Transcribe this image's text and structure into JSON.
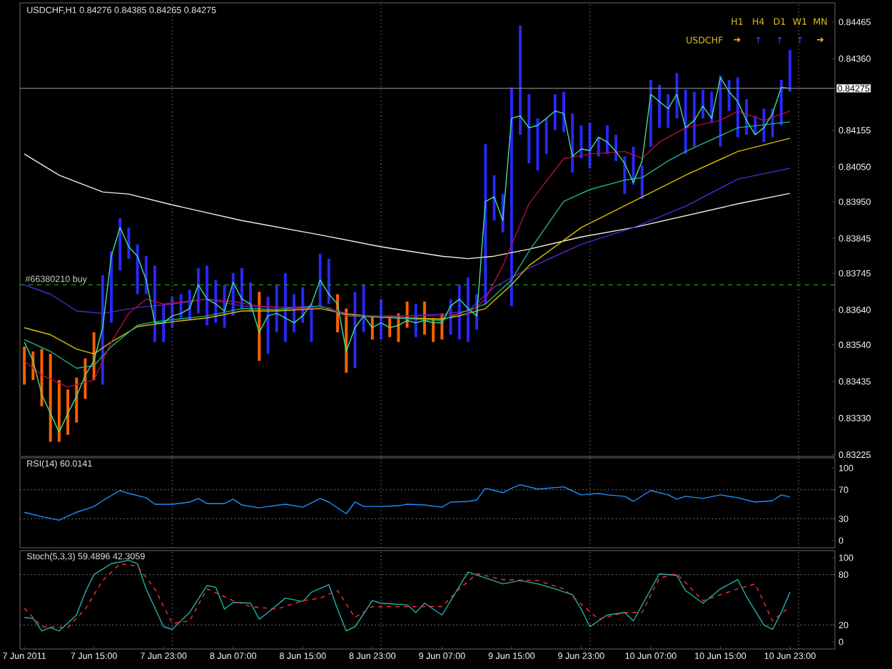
{
  "chart_data": [
    {
      "type": "bar",
      "title": "USDCHF,H1 0.84276 0.84385 0.84265 0.84275",
      "x": [
        "2011-06-07T07:00",
        "2011-06-07T08:00",
        "2011-06-07T09:00",
        "2011-06-07T10:00",
        "2011-06-07T11:00",
        "2011-06-07T12:00",
        "2011-06-07T13:00",
        "2011-06-07T14:00",
        "2011-06-07T15:00",
        "2011-06-07T16:00",
        "2011-06-07T17:00",
        "2011-06-07T18:00",
        "2011-06-07T19:00",
        "2011-06-07T20:00",
        "2011-06-07T21:00",
        "2011-06-07T22:00",
        "2011-06-07T23:00",
        "2011-06-08T00:00",
        "2011-06-08T01:00",
        "2011-06-08T02:00",
        "2011-06-08T03:00",
        "2011-06-08T04:00",
        "2011-06-08T05:00",
        "2011-06-08T06:00",
        "2011-06-08T07:00",
        "2011-06-08T08:00",
        "2011-06-08T09:00",
        "2011-06-08T10:00",
        "2011-06-08T11:00",
        "2011-06-08T12:00",
        "2011-06-08T13:00",
        "2011-06-08T14:00",
        "2011-06-08T15:00",
        "2011-06-08T16:00",
        "2011-06-08T17:00",
        "2011-06-08T18:00",
        "2011-06-08T19:00",
        "2011-06-08T20:00",
        "2011-06-08T21:00",
        "2011-06-08T22:00",
        "2011-06-08T23:00",
        "2011-06-09T00:00",
        "2011-06-09T01:00",
        "2011-06-09T02:00",
        "2011-06-09T03:00",
        "2011-06-09T04:00",
        "2011-06-09T05:00",
        "2011-06-09T06:00",
        "2011-06-09T07:00",
        "2011-06-09T08:00",
        "2011-06-09T09:00",
        "2011-06-09T10:00",
        "2011-06-09T11:00",
        "2011-06-09T12:00",
        "2011-06-09T13:00",
        "2011-06-09T14:00",
        "2011-06-09T15:00",
        "2011-06-09T16:00",
        "2011-06-09T17:00",
        "2011-06-09T18:00",
        "2011-06-09T19:00",
        "2011-06-09T20:00",
        "2011-06-09T21:00",
        "2011-06-09T22:00",
        "2011-06-09T23:00",
        "2011-06-10T00:00",
        "2011-06-10T01:00",
        "2011-06-10T02:00",
        "2011-06-10T03:00",
        "2011-06-10T04:00",
        "2011-06-10T05:00",
        "2011-06-10T06:00",
        "2011-06-10T07:00",
        "2011-06-10T08:00",
        "2011-06-10T09:00",
        "2011-06-10T10:00",
        "2011-06-10T11:00",
        "2011-06-10T12:00",
        "2011-06-10T13:00",
        "2011-06-10T14:00",
        "2011-06-10T15:00",
        "2011-06-10T16:00",
        "2011-06-10T17:00",
        "2011-06-10T18:00",
        "2011-06-10T19:00",
        "2011-06-10T20:00",
        "2011-06-10T21:00",
        "2011-06-10T22:00",
        "2011-06-10T23:00"
      ],
      "xlim": [
        "2011-06-07T06:30",
        "2011-06-11T04:10"
      ],
      "ylim": [
        0.8322,
        0.8452
      ],
      "yticks": [
        0.84465,
        {
          "value": 0.8436,
          "label": "0.84360"
        },
        0.84155,
        {
          "value": 0.8405,
          "label": "0.84050"
        },
        {
          "value": 0.8395,
          "label": "0.83950"
        },
        0.83845,
        0.83745,
        {
          "value": 0.8364,
          "label": "0.83640"
        },
        {
          "value": 0.8354,
          "label": "0.83540"
        },
        0.83435,
        {
          "value": 0.8333,
          "label": "0.83330"
        },
        0.83225
      ],
      "tick_labels": "y",
      "ref_lines": [
        {
          "axis": "y",
          "value": 0.84275,
          "label": "0.84275",
          "color": "#808080",
          "line_style": "solid"
        },
        {
          "axis": "y",
          "value": 0.83712,
          "label": "#66380210 buy",
          "color": "#1e9e1e",
          "line_style": "dashed"
        },
        {
          "axis": "x",
          "value": "2011-06-08T00:00",
          "color": "#808080",
          "line_style": "dotted"
        },
        {
          "axis": "x",
          "value": "2011-06-09T00:00",
          "color": "#808080",
          "line_style": "dotted"
        },
        {
          "axis": "x",
          "value": "2011-06-10T00:00",
          "color": "#808080",
          "line_style": "dotted"
        },
        {
          "axis": "x",
          "value": "2011-06-11T00:00",
          "color": "#808080",
          "line_style": "dotted"
        }
      ],
      "annotations": [
        "USDCHF",
        "H1",
        "H4",
        "D1",
        "W1",
        "MN",
        "➔",
        "↑",
        "↑",
        "↑",
        "➔"
      ],
      "series": [
        {
          "type": "bar",
          "base": [
            0.83426,
            0.83439,
            0.83364,
            0.83262,
            0.83262,
            0.83282,
            0.83317,
            0.83385,
            0.83439,
            0.83426,
            0.83603,
            0.83753,
            0.83787,
            0.83685,
            0.83685,
            0.83548,
            0.83548,
            0.83589,
            0.83617,
            0.8361,
            0.8363,
            0.83596,
            0.83603,
            0.83589,
            0.83623,
            0.83644,
            0.83637,
            0.83494,
            0.83514,
            0.83576,
            0.83548,
            0.83576,
            0.83603,
            0.83548,
            0.83651,
            0.83657,
            0.83576,
            0.8346,
            0.83473,
            0.83576,
            0.83555,
            0.83555,
            0.83562,
            0.83548,
            0.83589,
            0.83562,
            0.83569,
            0.83548,
            0.83555,
            0.83569,
            0.83555,
            0.83548,
            0.83583,
            0.83657,
            0.83896,
            0.83862,
            0.83651,
            0.84142,
            0.8406,
            0.8404,
            0.84087,
            0.84155,
            0.84149,
            0.84033,
            0.84074,
            0.84046,
            0.8408,
            0.84087,
            0.84067,
            0.83972,
            0.83999,
            0.83958,
            0.84108,
            0.84162,
            0.84162,
            0.84189,
            0.84087,
            0.84108,
            0.84189,
            0.84176,
            0.84108,
            0.8421,
            0.84135,
            0.84142,
            0.84142,
            0.84121,
            0.84135,
            0.84169,
            0.84265
          ],
          "values": [
            0.00109,
            0.00082,
            0.00164,
            0.00252,
            0.00177,
            0.0013,
            0.00129,
            0.00116,
            0.00137,
            0.00313,
            0.00205,
            0.0015,
            0.00089,
            0.00143,
            0.00109,
            0.00219,
            0.00109,
            0.00089,
            0.00068,
            0.00088,
            0.0013,
            0.00171,
            0.00123,
            0.00123,
            0.00123,
            0.00116,
            0.00082,
            0.00198,
            0.00164,
            0.00136,
            0.00198,
            0.00109,
            0.00102,
            0.00109,
            0.0015,
            0.0013,
            0.00109,
            0.00184,
            0.00219,
            0.00136,
            0.00068,
            0.00116,
            0.00061,
            0.00082,
            0.00075,
            0.00095,
            0.00095,
            0.00069,
            0.00075,
            0.00102,
            0.00157,
            0.00185,
            0.00102,
            0.00458,
            0.0013,
            0.0011,
            0.00627,
            0.00313,
            0.00198,
            0.00149,
            0.00102,
            0.00103,
            0.00116,
            0.0017,
            0.00095,
            0.0013,
            0.00055,
            0.00082,
            0.00075,
            0.00108,
            0.00109,
            0.00096,
            0.00191,
            0.00123,
            0.00096,
            0.0013,
            0.00184,
            0.00157,
            0.00082,
            0.00089,
            0.00204,
            0.00089,
            0.00171,
            0.00102,
            0.00054,
            0.00096,
            0.00082,
            0.0013,
            0.0012
          ],
          "colors": [
            "#ff6000",
            "#ff6000",
            "#ff6000",
            "#ff6000",
            "#ff6000",
            "#ff6000",
            "#ff6000",
            "#ff6000",
            "#ff6000",
            "#2828ff",
            "#2828ff",
            "#2828ff",
            "#2828ff",
            "#2828ff",
            "#2828ff",
            "#2828ff",
            "#2828ff",
            "#2828ff",
            "#2828ff",
            "#2828ff",
            "#2828ff",
            "#2828ff",
            "#2828ff",
            "#2828ff",
            "#2828ff",
            "#2828ff",
            "#2828ff",
            "#ff6000",
            "#2828ff",
            "#2828ff",
            "#2828ff",
            "#2828ff",
            "#2828ff",
            "#2828ff",
            "#2828ff",
            "#2828ff",
            "#ff6000",
            "#ff6000",
            "#2828ff",
            "#2828ff",
            "#ff6000",
            "#2828ff",
            "#ff6000",
            "#ff6000",
            "#ff6000",
            "#2828ff",
            "#ff6000",
            "#ff6000",
            "#ff6000",
            "#2828ff",
            "#2828ff",
            "#2828ff",
            "#2828ff",
            "#2828ff",
            "#2828ff",
            "#2828ff",
            "#2828ff",
            "#2828ff",
            "#2828ff",
            "#2828ff",
            "#2828ff",
            "#2828ff",
            "#2828ff",
            "#2828ff",
            "#2828ff",
            "#2828ff",
            "#2828ff",
            "#2828ff",
            "#2828ff",
            "#2828ff",
            "#2828ff",
            "#2828ff",
            "#2828ff",
            "#2828ff",
            "#2828ff",
            "#2828ff",
            "#2828ff",
            "#2828ff",
            "#2828ff",
            "#2828ff",
            "#2828ff",
            "#2828ff",
            "#2828ff",
            "#2828ff",
            "#2828ff",
            "#2828ff",
            "#2828ff",
            "#2828ff",
            "#2828ff"
          ]
        },
        {
          "type": "line",
          "color": "#f0f0e0",
          "x": [
            "2011-06-07T07:00",
            "2011-06-07T11:00",
            "2011-06-07T16:00",
            "2011-06-07T19:00",
            "2011-06-08T00:00",
            "2011-06-08T08:00",
            "2011-06-08T17:00",
            "2011-06-09T00:00",
            "2011-06-09T07:00",
            "2011-06-09T10:00",
            "2011-06-09T13:00",
            "2011-06-09T17:00",
            "2011-06-09T23:00",
            "2011-06-10T05:00",
            "2011-06-10T11:00",
            "2011-06-10T17:00",
            "2011-06-10T23:00"
          ],
          "values": [
            0.84087,
            0.84026,
            0.83978,
            0.83972,
            0.83941,
            0.83896,
            0.83855,
            0.83821,
            0.83794,
            0.83787,
            0.83794,
            0.83814,
            0.83849,
            0.83876,
            0.8391,
            0.83944,
            0.83974
          ]
        },
        {
          "type": "line",
          "color": "#5a24d8",
          "x": [
            "2011-06-07T07:00",
            "2011-06-07T10:00",
            "2011-06-07T13:00",
            "2011-06-07T16:00",
            "2011-06-07T20:00",
            "2011-06-08T00:00",
            "2011-06-08T04:00",
            "2011-06-08T08:00",
            "2011-06-08T12:00",
            "2011-06-08T17:00",
            "2011-06-08T20:00",
            "2011-06-09T00:00",
            "2011-06-09T07:00",
            "2011-06-09T10:00",
            "2011-06-09T13:00",
            "2011-06-09T17:00",
            "2011-06-09T23:00",
            "2011-06-10T05:00",
            "2011-06-10T11:00",
            "2011-06-10T17:00",
            "2011-06-10T23:00"
          ],
          "values": [
            0.83712,
            0.83685,
            0.83637,
            0.8363,
            0.83647,
            0.83657,
            0.83671,
            0.83651,
            0.83647,
            0.83651,
            0.8363,
            0.83619,
            0.83628,
            0.83637,
            0.83705,
            0.8376,
            0.83828,
            0.83876,
            0.83937,
            0.84015,
            0.84046
          ]
        },
        {
          "type": "line",
          "color": "#d8c000",
          "x": [
            "2011-06-07T07:00",
            "2011-06-07T10:00",
            "2011-06-07T13:00",
            "2011-06-07T15:00",
            "2011-06-07T17:00",
            "2011-06-07T20:00",
            "2011-06-08T00:00",
            "2011-06-08T04:00",
            "2011-06-08T08:00",
            "2011-06-08T12:00",
            "2011-06-08T17:00",
            "2011-06-08T20:00",
            "2011-06-09T00:00",
            "2011-06-09T07:00",
            "2011-06-09T09:00",
            "2011-06-09T12:00",
            "2011-06-09T15:00",
            "2011-06-09T17:00",
            "2011-06-09T23:00",
            "2011-06-10T05:00",
            "2011-06-10T11:00",
            "2011-06-10T17:00",
            "2011-06-10T23:00"
          ],
          "values": [
            0.83589,
            0.83569,
            0.83528,
            0.83514,
            0.83548,
            0.83592,
            0.83606,
            0.83617,
            0.83637,
            0.83637,
            0.83644,
            0.83628,
            0.83619,
            0.83614,
            0.83623,
            0.83644,
            0.83712,
            0.83767,
            0.83876,
            0.83951,
            0.84026,
            0.84094,
            0.84132
          ]
        },
        {
          "type": "line",
          "color": "#20b080",
          "x": [
            "2011-06-07T07:00",
            "2011-06-07T10:00",
            "2011-06-07T13:00",
            "2011-06-07T15:00",
            "2011-06-07T17:00",
            "2011-06-07T20:00",
            "2011-06-07T22:00",
            "2011-06-08T04:00",
            "2011-06-08T08:00",
            "2011-06-08T12:00",
            "2011-06-08T17:00",
            "2011-06-08T20:00",
            "2011-06-09T00:00",
            "2011-06-09T07:00",
            "2011-06-09T09:00",
            "2011-06-09T12:00",
            "2011-06-09T15:00",
            "2011-06-09T17:00",
            "2011-06-09T21:00",
            "2011-06-10T00:00",
            "2011-06-10T04:00",
            "2011-06-10T06:00",
            "2011-06-10T09:00",
            "2011-06-10T11:00",
            "2011-06-10T17:00",
            "2011-06-10T23:00"
          ],
          "values": [
            0.83555,
            0.83521,
            0.83473,
            0.8348,
            0.83535,
            0.83596,
            0.83606,
            0.83623,
            0.83644,
            0.83641,
            0.83651,
            0.83623,
            0.83619,
            0.8361,
            0.8363,
            0.83657,
            0.83726,
            0.83808,
            0.83951,
            0.83985,
            0.84012,
            0.84019,
            0.84067,
            0.84094,
            0.84162,
            0.84179
          ]
        },
        {
          "type": "line",
          "color": "#b01040",
          "x": [
            "2011-06-07T07:00",
            "2011-06-07T09:00",
            "2011-06-07T12:00",
            "2011-06-07T15:00",
            "2011-06-07T17:00",
            "2011-06-07T19:00",
            "2011-06-07T21:00",
            "2011-06-07T23:00",
            "2011-06-08T04:00",
            "2011-06-08T07:00",
            "2011-06-08T10:00",
            "2011-06-08T15:00",
            "2011-06-08T18:00",
            "2011-06-08T20:00",
            "2011-06-09T00:00",
            "2011-06-09T07:00",
            "2011-06-09T10:00",
            "2011-06-09T12:00",
            "2011-06-09T14:00",
            "2011-06-09T17:00",
            "2011-06-09T21:00",
            "2011-06-10T00:00",
            "2011-06-10T04:00",
            "2011-06-10T06:00",
            "2011-06-10T08:00",
            "2011-06-10T11:00",
            "2011-06-10T15:00",
            "2011-06-10T17:00",
            "2011-06-10T20:00",
            "2011-06-10T23:00"
          ],
          "values": [
            0.83494,
            0.83453,
            0.83419,
            0.83439,
            0.83548,
            0.8363,
            0.83671,
            0.83657,
            0.83671,
            0.83664,
            0.83651,
            0.83644,
            0.83647,
            0.83623,
            0.83623,
            0.83623,
            0.8363,
            0.83671,
            0.83767,
            0.83944,
            0.84074,
            0.84087,
            0.84094,
            0.84074,
            0.84121,
            0.84162,
            0.84183,
            0.8421,
            0.84183,
            0.8421
          ]
        },
        {
          "type": "line",
          "color": "#40e090",
          "values": [
            0.83548,
            0.83494,
            0.83398,
            0.83344,
            0.83289,
            0.83344,
            0.83392,
            0.83453,
            0.83494,
            0.83589,
            0.83794,
            0.83876,
            0.83821,
            0.83794,
            0.83726,
            0.83603,
            0.83603,
            0.83623,
            0.8363,
            0.83644,
            0.83712,
            0.83671,
            0.83657,
            0.83637,
            0.83719,
            0.83671,
            0.83657,
            0.83576,
            0.83623,
            0.8363,
            0.83617,
            0.83603,
            0.83623,
            0.83657,
            0.83726,
            0.83685,
            0.83657,
            0.83521,
            0.83589,
            0.83623,
            0.83589,
            0.83603,
            0.83589,
            0.83596,
            0.8361,
            0.83603,
            0.8361,
            0.83603,
            0.83603,
            0.83651,
            0.83671,
            0.83644,
            0.83623,
            0.83951,
            0.83964,
            0.83896,
            0.84189,
            0.84196,
            0.84162,
            0.84169,
            0.84189,
            0.8421,
            0.84203,
            0.8408,
            0.84101,
            0.84097,
            0.84135,
            0.84121,
            0.84094,
            0.8406,
            0.84005,
            0.84067,
            0.84258,
            0.84237,
            0.84217,
            0.84258,
            0.84162,
            0.84183,
            0.84224,
            0.84189,
            0.84306,
            0.84265,
            0.84237,
            0.84183,
            0.84142,
            0.84162,
            0.84203,
            0.84278,
            0.84275
          ]
        }
      ]
    },
    {
      "type": "line",
      "title": "RSI(14) 60.0141",
      "xlim": [
        "2011-06-07T06:30",
        "2011-06-11T04:10"
      ],
      "ylim": [
        -10,
        114
      ],
      "yticks": [
        0,
        30,
        70,
        100
      ],
      "tick_labels": "y",
      "ref_lines": [
        {
          "axis": "y",
          "value": 70,
          "color": "#909090",
          "line_style": "dotted"
        },
        {
          "axis": "y",
          "value": 30,
          "color": "#909090",
          "line_style": "dotted"
        },
        {
          "axis": "x",
          "value": "2011-06-08T00:00",
          "color": "#808080",
          "line_style": "dotted"
        },
        {
          "axis": "x",
          "value": "2011-06-09T00:00",
          "color": "#808080",
          "line_style": "dotted"
        },
        {
          "axis": "x",
          "value": "2011-06-10T00:00",
          "color": "#808080",
          "line_style": "dotted"
        },
        {
          "axis": "x",
          "value": "2011-06-11T00:00",
          "color": "#808080",
          "line_style": "dotted"
        }
      ],
      "series": [
        {
          "color": "#1e90ff",
          "x": [
            "2011-06-07T07:00",
            "2011-06-07T09:00",
            "2011-06-07T11:00",
            "2011-06-07T13:00",
            "2011-06-07T15:00",
            "2011-06-07T16:00",
            "2011-06-07T18:00",
            "2011-06-07T19:00",
            "2011-06-07T21:00",
            "2011-06-07T22:00",
            "2011-06-08T00:00",
            "2011-06-08T02:00",
            "2011-06-08T03:00",
            "2011-06-08T04:00",
            "2011-06-08T06:00",
            "2011-06-08T07:00",
            "2011-06-08T08:00",
            "2011-06-08T10:00",
            "2011-06-08T11:00",
            "2011-06-08T13:00",
            "2011-06-08T15:00",
            "2011-06-08T17:00",
            "2011-06-08T18:00",
            "2011-06-08T20:00",
            "2011-06-08T21:00",
            "2011-06-08T22:00",
            "2011-06-09T00:00",
            "2011-06-09T02:00",
            "2011-06-09T03:00",
            "2011-06-09T05:00",
            "2011-06-09T07:00",
            "2011-06-09T08:00",
            "2011-06-09T10:00",
            "2011-06-09T11:00",
            "2011-06-09T12:00",
            "2011-06-09T14:00",
            "2011-06-09T15:00",
            "2011-06-09T16:00",
            "2011-06-09T18:00",
            "2011-06-09T21:00",
            "2011-06-09T23:00",
            "2011-06-10T01:00",
            "2011-06-10T02:00",
            "2011-06-10T04:00",
            "2011-06-10T05:00",
            "2011-06-10T07:00",
            "2011-06-10T09:00",
            "2011-06-10T10:00",
            "2011-06-10T11:00",
            "2011-06-10T13:00",
            "2011-06-10T15:00",
            "2011-06-10T17:00",
            "2011-06-10T19:00",
            "2011-06-10T21:00",
            "2011-06-10T22:00",
            "2011-06-10T23:00"
          ],
          "values": [
            39,
            33,
            28,
            39,
            47,
            55,
            69,
            65,
            59,
            50,
            50,
            53,
            58,
            51,
            51,
            57,
            49,
            45,
            47,
            50,
            46,
            58,
            53,
            37,
            53,
            47,
            47,
            48,
            50,
            49,
            46,
            53,
            54,
            56,
            72,
            66,
            72,
            77,
            71,
            74,
            63,
            65,
            63,
            61,
            54,
            69,
            63,
            57,
            61,
            58,
            63,
            59,
            53,
            55,
            63,
            60
          ]
        }
      ]
    },
    {
      "type": "line",
      "title": "Stoch(5,3,3) 59.4896 42.3059",
      "xlim": [
        "2011-06-07T06:30",
        "2011-06-11T04:10"
      ],
      "ylim": [
        -8.5,
        108.5
      ],
      "yticks": [
        0,
        20,
        80,
        100
      ],
      "xticks": [
        {
          "value": "2011-06-07T07:00",
          "label": "7 Jun 2011"
        },
        {
          "value": "2011-06-07T15:00",
          "label": "7 Jun 15:00"
        },
        {
          "value": "2011-06-07T23:00",
          "label": "7 Jun 23:00"
        },
        {
          "value": "2011-06-08T07:00",
          "label": "8 Jun 07:00"
        },
        {
          "value": "2011-06-08T15:00",
          "label": "8 Jun 15:00"
        },
        {
          "value": "2011-06-08T23:00",
          "label": "8 Jun 23:00"
        },
        {
          "value": "2011-06-09T07:00",
          "label": "9 Jun 07:00"
        },
        {
          "value": "2011-06-09T15:00",
          "label": "9 Jun 15:00"
        },
        {
          "value": "2011-06-09T23:00",
          "label": "9 Jun 23:00"
        },
        {
          "value": "2011-06-10T07:00",
          "label": "10 Jun 07:00"
        },
        {
          "value": "2011-06-10T15:00",
          "label": "10 Jun 15:00"
        },
        {
          "value": "2011-06-10T23:00",
          "label": "10 Jun 23:00"
        }
      ],
      "ref_lines": [
        {
          "axis": "y",
          "value": 80,
          "color": "#909090",
          "line_style": "dotted"
        },
        {
          "axis": "y",
          "value": 20,
          "color": "#909090",
          "line_style": "dotted"
        },
        {
          "axis": "x",
          "value": "2011-06-08T00:00",
          "color": "#808080",
          "line_style": "dotted"
        },
        {
          "axis": "x",
          "value": "2011-06-09T00:00",
          "color": "#808080",
          "line_style": "dotted"
        },
        {
          "axis": "x",
          "value": "2011-06-10T00:00",
          "color": "#808080",
          "line_style": "dotted"
        },
        {
          "axis": "x",
          "value": "2011-06-11T00:00",
          "color": "#808080",
          "line_style": "dotted"
        }
      ],
      "series": [
        {
          "color": "#20b2aa",
          "x": [
            "2011-06-07T07:00",
            "2011-06-07T08:00",
            "2011-06-07T09:00",
            "2011-06-07T10:00",
            "2011-06-07T11:00",
            "2011-06-07T13:00",
            "2011-06-07T14:00",
            "2011-06-07T15:00",
            "2011-06-07T17:00",
            "2011-06-07T19:00",
            "2011-06-07T20:00",
            "2011-06-07T21:00",
            "2011-06-07T23:00",
            "2011-06-08T00:00",
            "2011-06-08T02:00",
            "2011-06-08T04:00",
            "2011-06-08T05:00",
            "2011-06-08T06:00",
            "2011-06-08T07:00",
            "2011-06-08T09:00",
            "2011-06-08T10:00",
            "2011-06-08T11:00",
            "2011-06-08T13:00",
            "2011-06-08T15:00",
            "2011-06-08T16:00",
            "2011-06-08T18:00",
            "2011-06-08T19:00",
            "2011-06-08T20:00",
            "2011-06-08T21:00",
            "2011-06-08T23:00",
            "2011-06-09T00:00",
            "2011-06-09T03:00",
            "2011-06-09T04:00",
            "2011-06-09T05:00",
            "2011-06-09T07:00",
            "2011-06-09T10:00",
            "2011-06-09T12:00",
            "2011-06-09T14:00",
            "2011-06-09T16:00",
            "2011-06-09T18:00",
            "2011-06-09T20:00",
            "2011-06-09T22:00",
            "2011-06-09T23:00",
            "2011-06-10T00:00",
            "2011-06-10T02:00",
            "2011-06-10T04:00",
            "2011-06-10T05:00",
            "2011-06-10T08:00",
            "2011-06-10T10:00",
            "2011-06-10T11:00",
            "2011-06-10T13:00",
            "2011-06-10T15:00",
            "2011-06-10T17:00",
            "2011-06-10T18:00",
            "2011-06-10T20:00",
            "2011-06-10T21:00",
            "2011-06-10T22:00",
            "2011-06-10T23:00"
          ],
          "values": [
            29,
            28,
            13,
            17,
            13,
            32,
            59,
            80,
            93,
            97,
            93,
            63,
            18,
            15,
            35,
            67,
            65,
            39,
            47,
            46,
            27,
            35,
            52,
            48,
            59,
            68,
            39,
            13,
            18,
            49,
            46,
            44,
            35,
            46,
            32,
            83,
            76,
            69,
            73,
            69,
            63,
            56,
            39,
            18,
            32,
            35,
            25,
            81,
            79,
            61,
            46,
            63,
            74,
            54,
            20,
            15,
            35,
            59
          ]
        },
        {
          "color": "#ff3030",
          "line_style": "dashed",
          "x": [
            "2011-06-07T07:00",
            "2011-06-07T09:00",
            "2011-06-07T12:00",
            "2011-06-07T14:00",
            "2011-06-07T16:00",
            "2011-06-07T18:00",
            "2011-06-07T20:00",
            "2011-06-07T22:00",
            "2011-06-08T00:00",
            "2011-06-08T02:00",
            "2011-06-08T04:00",
            "2011-06-08T07:00",
            "2011-06-08T09:00",
            "2011-06-08T12:00",
            "2011-06-08T15:00",
            "2011-06-08T17:00",
            "2011-06-08T19:00",
            "2011-06-08T21:00",
            "2011-06-08T23:00",
            "2011-06-09T03:00",
            "2011-06-09T07:00",
            "2011-06-09T09:00",
            "2011-06-09T11:00",
            "2011-06-09T14:00",
            "2011-06-09T18:00",
            "2011-06-09T21:00",
            "2011-06-10T01:00",
            "2011-06-10T04:00",
            "2011-06-10T06:00",
            "2011-06-10T08:00",
            "2011-06-10T10:00",
            "2011-06-10T13:00",
            "2011-06-10T17:00",
            "2011-06-10T19:00",
            "2011-06-10T21:00",
            "2011-06-10T23:00"
          ],
          "values": [
            40,
            18,
            17,
            39,
            73,
            93,
            90,
            63,
            22,
            25,
            63,
            49,
            42,
            39,
            49,
            52,
            61,
            29,
            42,
            42,
            42,
            63,
            81,
            74,
            73,
            63,
            27,
            35,
            35,
            76,
            81,
            49,
            63,
            69,
            25,
            42
          ]
        }
      ]
    }
  ]
}
